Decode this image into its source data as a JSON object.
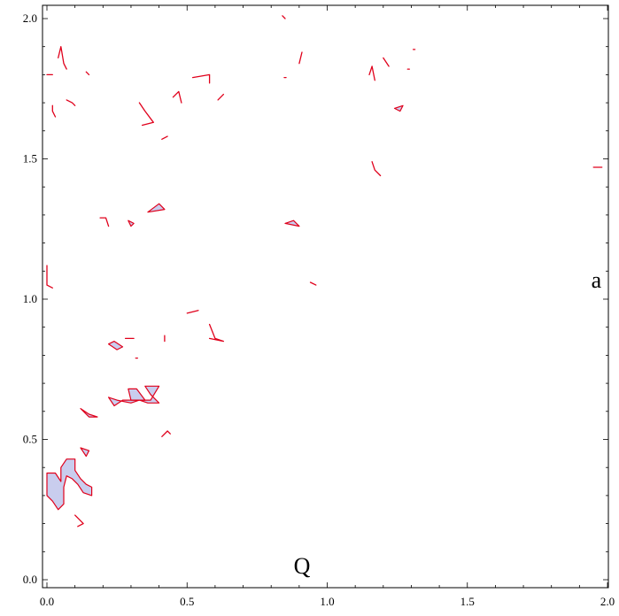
{
  "chart_data": {
    "type": "area",
    "title": "",
    "xlabel": "",
    "ylabel": "",
    "xlim": [
      0,
      2
    ],
    "ylim": [
      0,
      2
    ],
    "x_ticks": [
      0,
      0.5,
      1,
      1.5,
      2
    ],
    "y_ticks": [
      0,
      0.5,
      1,
      1.5,
      2
    ],
    "x_tick_labels": [
      "0.0",
      "0.5",
      "1.0",
      "1.5",
      "2.0"
    ],
    "y_tick_labels": [
      "0.0",
      "0.5",
      "1.0",
      "1.5",
      "2.0"
    ],
    "grid": false,
    "annotations": [
      {
        "text": "a",
        "x": 1.96,
        "y": 1.07
      },
      {
        "text": "Q",
        "x": 0.91,
        "y": 0.05
      }
    ],
    "colors": {
      "edge": "#e0001b",
      "fill": "#c9cdee",
      "frame": "#000000"
    },
    "regions": [
      {
        "points": [
          [
            0.0,
            0.38
          ],
          [
            0.03,
            0.38
          ],
          [
            0.05,
            0.35
          ],
          [
            0.05,
            0.4
          ],
          [
            0.07,
            0.43
          ],
          [
            0.1,
            0.43
          ],
          [
            0.1,
            0.39
          ],
          [
            0.12,
            0.36
          ],
          [
            0.14,
            0.34
          ],
          [
            0.16,
            0.33
          ],
          [
            0.16,
            0.3
          ],
          [
            0.13,
            0.31
          ],
          [
            0.11,
            0.34
          ],
          [
            0.09,
            0.36
          ],
          [
            0.07,
            0.37
          ],
          [
            0.06,
            0.33
          ],
          [
            0.06,
            0.27
          ],
          [
            0.04,
            0.25
          ],
          [
            0.02,
            0.28
          ],
          [
            0.0,
            0.3
          ]
        ]
      },
      {
        "points": [
          [
            0.12,
            0.47
          ],
          [
            0.15,
            0.46
          ],
          [
            0.14,
            0.44
          ]
        ]
      },
      {
        "points": [
          [
            0.12,
            0.61
          ],
          [
            0.15,
            0.59
          ],
          [
            0.18,
            0.58
          ],
          [
            0.15,
            0.58
          ]
        ]
      },
      {
        "points": [
          [
            0.22,
            0.65
          ],
          [
            0.25,
            0.64
          ],
          [
            0.3,
            0.63
          ],
          [
            0.33,
            0.64
          ],
          [
            0.36,
            0.63
          ],
          [
            0.4,
            0.63
          ],
          [
            0.37,
            0.66
          ],
          [
            0.35,
            0.69
          ],
          [
            0.4,
            0.69
          ],
          [
            0.37,
            0.64
          ],
          [
            0.32,
            0.64
          ],
          [
            0.27,
            0.64
          ],
          [
            0.24,
            0.62
          ]
        ]
      },
      {
        "points": [
          [
            0.22,
            0.84
          ],
          [
            0.24,
            0.85
          ],
          [
            0.27,
            0.83
          ],
          [
            0.25,
            0.82
          ]
        ]
      },
      {
        "points": [
          [
            0.29,
            0.68
          ],
          [
            0.32,
            0.68
          ],
          [
            0.35,
            0.64
          ],
          [
            0.3,
            0.64
          ]
        ]
      },
      {
        "points": [
          [
            0.36,
            1.31
          ],
          [
            0.4,
            1.34
          ],
          [
            0.42,
            1.32
          ]
        ]
      },
      {
        "points": [
          [
            0.85,
            1.27
          ],
          [
            0.88,
            1.28
          ],
          [
            0.9,
            1.26
          ]
        ]
      },
      {
        "points": [
          [
            0.29,
            1.28
          ],
          [
            0.31,
            1.27
          ],
          [
            0.3,
            1.26
          ]
        ]
      },
      {
        "points": [
          [
            1.24,
            1.68
          ],
          [
            1.27,
            1.69
          ],
          [
            1.26,
            1.67
          ]
        ]
      }
    ],
    "segments": [
      {
        "points": [
          [
            0.0,
            1.12
          ],
          [
            0.0,
            1.05
          ],
          [
            0.02,
            1.04
          ]
        ]
      },
      {
        "points": [
          [
            0.0,
            1.8
          ],
          [
            0.02,
            1.8
          ]
        ]
      },
      {
        "points": [
          [
            0.02,
            1.69
          ],
          [
            0.02,
            1.67
          ],
          [
            0.03,
            1.65
          ]
        ]
      },
      {
        "points": [
          [
            0.04,
            1.86
          ],
          [
            0.05,
            1.9
          ],
          [
            0.06,
            1.84
          ],
          [
            0.07,
            1.82
          ]
        ]
      },
      {
        "points": [
          [
            0.07,
            1.71
          ],
          [
            0.09,
            1.7
          ],
          [
            0.1,
            1.69
          ]
        ]
      },
      {
        "points": [
          [
            0.14,
            1.81
          ],
          [
            0.15,
            1.8
          ]
        ]
      },
      {
        "points": [
          [
            0.33,
            1.7
          ],
          [
            0.35,
            1.67
          ],
          [
            0.38,
            1.63
          ],
          [
            0.34,
            1.62
          ]
        ]
      },
      {
        "points": [
          [
            0.41,
            1.57
          ],
          [
            0.43,
            1.58
          ]
        ]
      },
      {
        "points": [
          [
            0.45,
            1.72
          ],
          [
            0.47,
            1.74
          ],
          [
            0.48,
            1.7
          ]
        ]
      },
      {
        "points": [
          [
            0.52,
            1.79
          ],
          [
            0.58,
            1.8
          ],
          [
            0.58,
            1.77
          ]
        ]
      },
      {
        "points": [
          [
            0.61,
            1.71
          ],
          [
            0.63,
            1.73
          ]
        ]
      },
      {
        "points": [
          [
            0.84,
            2.01
          ],
          [
            0.85,
            2.0
          ]
        ]
      },
      {
        "points": [
          [
            0.85,
            1.79
          ]
        ]
      },
      {
        "points": [
          [
            0.9,
            1.84
          ],
          [
            0.91,
            1.88
          ]
        ]
      },
      {
        "points": [
          [
            1.15,
            1.8
          ],
          [
            1.16,
            1.83
          ],
          [
            1.17,
            1.78
          ]
        ]
      },
      {
        "points": [
          [
            1.2,
            1.86
          ],
          [
            1.22,
            1.83
          ]
        ]
      },
      {
        "points": [
          [
            1.29,
            1.82
          ]
        ]
      },
      {
        "points": [
          [
            1.31,
            1.89
          ]
        ]
      },
      {
        "points": [
          [
            1.16,
            1.49
          ],
          [
            1.17,
            1.46
          ],
          [
            1.19,
            1.44
          ]
        ]
      },
      {
        "points": [
          [
            1.95,
            1.47
          ],
          [
            1.98,
            1.47
          ]
        ]
      },
      {
        "points": [
          [
            0.19,
            1.29
          ],
          [
            0.21,
            1.29
          ],
          [
            0.22,
            1.26
          ]
        ]
      },
      {
        "points": [
          [
            0.94,
            1.06
          ],
          [
            0.96,
            1.05
          ]
        ]
      },
      {
        "points": [
          [
            0.5,
            0.95
          ],
          [
            0.54,
            0.96
          ]
        ]
      },
      {
        "points": [
          [
            0.58,
            0.91
          ],
          [
            0.6,
            0.86
          ],
          [
            0.63,
            0.85
          ],
          [
            0.58,
            0.86
          ]
        ]
      },
      {
        "points": [
          [
            0.42,
            0.87
          ],
          [
            0.42,
            0.85
          ]
        ]
      },
      {
        "points": [
          [
            0.31,
            0.86
          ],
          [
            0.28,
            0.86
          ]
        ]
      },
      {
        "points": [
          [
            0.32,
            0.79
          ]
        ]
      },
      {
        "points": [
          [
            0.41,
            0.51
          ],
          [
            0.43,
            0.53
          ],
          [
            0.44,
            0.52
          ]
        ]
      },
      {
        "points": [
          [
            0.1,
            0.23
          ],
          [
            0.13,
            0.2
          ],
          [
            0.11,
            0.19
          ]
        ]
      }
    ]
  }
}
